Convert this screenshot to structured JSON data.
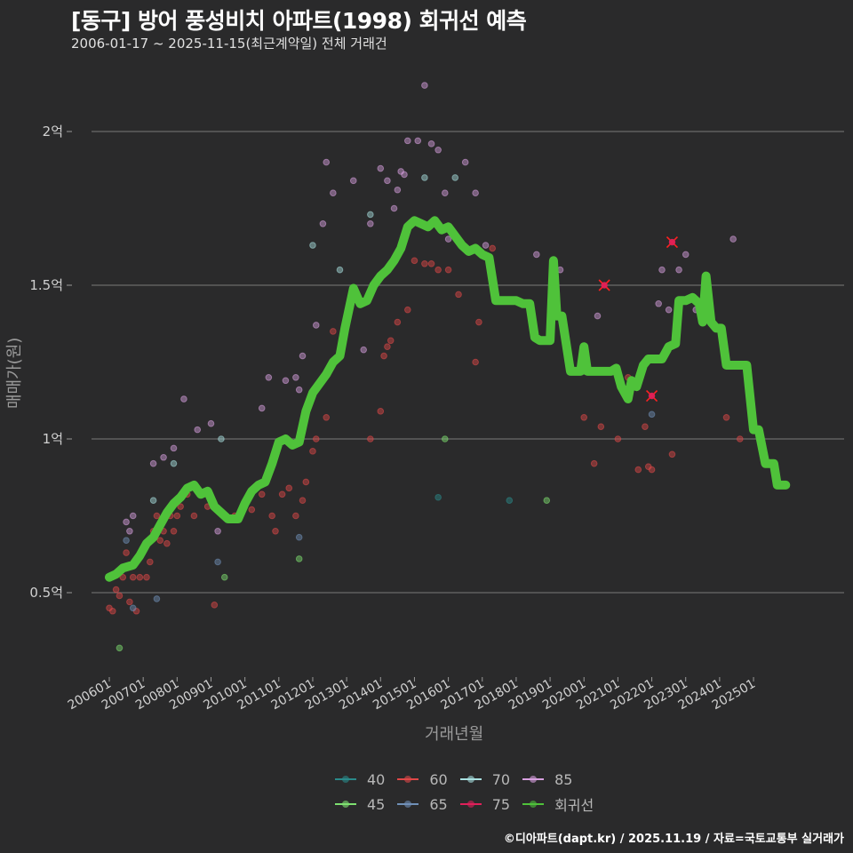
{
  "header": {
    "title": "[동구] 방어 풍성비치 아파트(1998) 회귀선 예측",
    "subtitle": "2006-01-17 ~ 2025-11-15(최근계약일) 전체 거래건"
  },
  "footer": "©디아파트(dapt.kr) / 2025.11.19 / 자료=국토교통부 실거래가",
  "legend": [
    {
      "label": "40",
      "color": "#2a8a8a"
    },
    {
      "label": "60",
      "color": "#e04848"
    },
    {
      "label": "70",
      "color": "#a8e0e0"
    },
    {
      "label": "85",
      "color": "#d8a0e0"
    },
    {
      "label": "45",
      "color": "#7ee070"
    },
    {
      "label": "65",
      "color": "#7090b8"
    },
    {
      "label": "75",
      "color": "#e0205a"
    },
    {
      "label": "회귀선",
      "color": "#4fc23a"
    }
  ],
  "chart_data": {
    "type": "scatter",
    "title": "[동구] 방어 풍성비치 아파트(1998) 회귀선 예측",
    "subtitle": "2006-01-17 ~ 2025-11-15(최근계약일) 전체 거래건",
    "xlabel": "거래년월",
    "ylabel": "매매가(원)",
    "x_ticks": [
      "200601",
      "200701",
      "200801",
      "200901",
      "201001",
      "201101",
      "201201",
      "201301",
      "201401",
      "201501",
      "201601",
      "201701",
      "201801",
      "201901",
      "202001",
      "202101",
      "202201",
      "202301",
      "202401",
      "202501"
    ],
    "y_ticks": [
      {
        "value": 0.5,
        "label": "0.5억"
      },
      {
        "value": 1.0,
        "label": "1억"
      },
      {
        "value": 1.5,
        "label": "1.5억"
      },
      {
        "value": 2.0,
        "label": "2억"
      }
    ],
    "ylim": [
      0.24,
      2.24
    ],
    "grid": "horizontal",
    "legend_position": "bottom",
    "regression_line": {
      "name": "회귀선",
      "color": "#4fc23a",
      "points": [
        [
          2006.0,
          0.55
        ],
        [
          2006.2,
          0.56
        ],
        [
          2006.4,
          0.58
        ],
        [
          2006.7,
          0.59
        ],
        [
          2006.9,
          0.62
        ],
        [
          2007.1,
          0.66
        ],
        [
          2007.3,
          0.68
        ],
        [
          2007.5,
          0.72
        ],
        [
          2007.7,
          0.76
        ],
        [
          2007.9,
          0.79
        ],
        [
          2008.1,
          0.81
        ],
        [
          2008.3,
          0.84
        ],
        [
          2008.5,
          0.85
        ],
        [
          2008.7,
          0.82
        ],
        [
          2008.9,
          0.83
        ],
        [
          2009.1,
          0.78
        ],
        [
          2009.3,
          0.76
        ],
        [
          2009.5,
          0.74
        ],
        [
          2009.8,
          0.74
        ],
        [
          2010.0,
          0.79
        ],
        [
          2010.2,
          0.83
        ],
        [
          2010.4,
          0.85
        ],
        [
          2010.6,
          0.86
        ],
        [
          2010.8,
          0.92
        ],
        [
          2011.0,
          0.99
        ],
        [
          2011.2,
          1.0
        ],
        [
          2011.4,
          0.98
        ],
        [
          2011.6,
          0.99
        ],
        [
          2011.8,
          1.09
        ],
        [
          2012.0,
          1.15
        ],
        [
          2012.2,
          1.18
        ],
        [
          2012.4,
          1.21
        ],
        [
          2012.6,
          1.25
        ],
        [
          2012.8,
          1.27
        ],
        [
          2012.95,
          1.36
        ],
        [
          2013.2,
          1.49
        ],
        [
          2013.4,
          1.44
        ],
        [
          2013.6,
          1.45
        ],
        [
          2013.8,
          1.5
        ],
        [
          2014.0,
          1.53
        ],
        [
          2014.2,
          1.55
        ],
        [
          2014.4,
          1.58
        ],
        [
          2014.6,
          1.62
        ],
        [
          2014.8,
          1.69
        ],
        [
          2015.0,
          1.71
        ],
        [
          2015.2,
          1.7
        ],
        [
          2015.4,
          1.69
        ],
        [
          2015.6,
          1.71
        ],
        [
          2015.8,
          1.68
        ],
        [
          2016.0,
          1.69
        ],
        [
          2016.2,
          1.66
        ],
        [
          2016.4,
          1.63
        ],
        [
          2016.6,
          1.61
        ],
        [
          2016.8,
          1.62
        ],
        [
          2017.0,
          1.6
        ],
        [
          2017.2,
          1.59
        ],
        [
          2017.4,
          1.45
        ],
        [
          2017.7,
          1.45
        ],
        [
          2018.0,
          1.45
        ],
        [
          2018.2,
          1.44
        ],
        [
          2018.4,
          1.44
        ],
        [
          2018.55,
          1.33
        ],
        [
          2018.7,
          1.32
        ],
        [
          2019.0,
          1.32
        ],
        [
          2019.1,
          1.58
        ],
        [
          2019.2,
          1.4
        ],
        [
          2019.35,
          1.4
        ],
        [
          2019.6,
          1.22
        ],
        [
          2019.9,
          1.22
        ],
        [
          2020.0,
          1.3
        ],
        [
          2020.1,
          1.22
        ],
        [
          2020.4,
          1.22
        ],
        [
          2020.8,
          1.22
        ],
        [
          2020.95,
          1.23
        ],
        [
          2021.1,
          1.17
        ],
        [
          2021.3,
          1.13
        ],
        [
          2021.4,
          1.19
        ],
        [
          2021.55,
          1.17
        ],
        [
          2021.75,
          1.24
        ],
        [
          2021.9,
          1.26
        ],
        [
          2022.1,
          1.26
        ],
        [
          2022.3,
          1.26
        ],
        [
          2022.5,
          1.3
        ],
        [
          2022.7,
          1.31
        ],
        [
          2022.8,
          1.45
        ],
        [
          2023.0,
          1.45
        ],
        [
          2023.2,
          1.46
        ],
        [
          2023.4,
          1.44
        ],
        [
          2023.5,
          1.38
        ],
        [
          2023.6,
          1.53
        ],
        [
          2023.75,
          1.38
        ],
        [
          2023.9,
          1.36
        ],
        [
          2024.05,
          1.36
        ],
        [
          2024.2,
          1.24
        ],
        [
          2024.5,
          1.24
        ],
        [
          2024.8,
          1.24
        ],
        [
          2025.0,
          1.03
        ],
        [
          2025.15,
          1.03
        ],
        [
          2025.35,
          0.92
        ],
        [
          2025.6,
          0.92
        ],
        [
          2025.7,
          0.85
        ],
        [
          2025.95,
          0.85
        ]
      ]
    },
    "series": [
      {
        "name": "40",
        "color": "#2a8a8a",
        "points": [
          [
            2015.7,
            0.81
          ],
          [
            2017.8,
            0.8
          ]
        ]
      },
      {
        "name": "45",
        "color": "#7ee070",
        "points": [
          [
            2006.3,
            0.32
          ],
          [
            2009.4,
            0.55
          ],
          [
            2011.6,
            0.61
          ],
          [
            2015.9,
            1.0
          ],
          [
            2018.9,
            0.8
          ]
        ]
      },
      {
        "name": "60",
        "color": "#e04848",
        "points": [
          [
            2006.0,
            0.45
          ],
          [
            2006.1,
            0.44
          ],
          [
            2006.2,
            0.51
          ],
          [
            2006.3,
            0.49
          ],
          [
            2006.4,
            0.55
          ],
          [
            2006.5,
            0.63
          ],
          [
            2006.6,
            0.47
          ],
          [
            2006.7,
            0.55
          ],
          [
            2006.8,
            0.44
          ],
          [
            2006.9,
            0.55
          ],
          [
            2007.1,
            0.55
          ],
          [
            2007.2,
            0.6
          ],
          [
            2007.3,
            0.7
          ],
          [
            2007.4,
            0.75
          ],
          [
            2007.5,
            0.67
          ],
          [
            2007.6,
            0.7
          ],
          [
            2007.7,
            0.66
          ],
          [
            2007.8,
            0.75
          ],
          [
            2007.9,
            0.7
          ],
          [
            2008.0,
            0.75
          ],
          [
            2008.1,
            0.78
          ],
          [
            2008.3,
            0.82
          ],
          [
            2008.5,
            0.75
          ],
          [
            2008.9,
            0.78
          ],
          [
            2009.1,
            0.46
          ],
          [
            2009.7,
            0.75
          ],
          [
            2010.2,
            0.77
          ],
          [
            2010.5,
            0.82
          ],
          [
            2010.8,
            0.75
          ],
          [
            2010.9,
            0.7
          ],
          [
            2011.1,
            0.82
          ],
          [
            2011.3,
            0.84
          ],
          [
            2011.5,
            0.75
          ],
          [
            2011.7,
            0.8
          ],
          [
            2011.8,
            0.86
          ],
          [
            2012.0,
            0.96
          ],
          [
            2012.1,
            1.0
          ],
          [
            2012.4,
            1.07
          ],
          [
            2012.6,
            1.35
          ],
          [
            2013.7,
            1.0
          ],
          [
            2014.0,
            1.09
          ],
          [
            2014.1,
            1.27
          ],
          [
            2014.2,
            1.3
          ],
          [
            2014.3,
            1.32
          ],
          [
            2014.5,
            1.38
          ],
          [
            2014.8,
            1.42
          ],
          [
            2015.0,
            1.58
          ],
          [
            2015.3,
            1.57
          ],
          [
            2015.5,
            1.57
          ],
          [
            2015.7,
            1.55
          ],
          [
            2016.0,
            1.55
          ],
          [
            2016.3,
            1.47
          ],
          [
            2016.8,
            1.25
          ],
          [
            2016.9,
            1.38
          ],
          [
            2017.3,
            1.62
          ],
          [
            2020.0,
            1.07
          ],
          [
            2020.3,
            0.92
          ],
          [
            2020.5,
            1.04
          ],
          [
            2021.0,
            1.0
          ],
          [
            2021.3,
            1.2
          ],
          [
            2021.6,
            0.9
          ],
          [
            2021.8,
            1.04
          ],
          [
            2021.9,
            0.91
          ],
          [
            2022.0,
            0.9
          ],
          [
            2022.6,
            0.95
          ],
          [
            2024.2,
            1.07
          ],
          [
            2024.6,
            1.0
          ]
        ]
      },
      {
        "name": "65",
        "color": "#7090b8",
        "points": [
          [
            2006.5,
            0.67
          ],
          [
            2006.7,
            0.45
          ],
          [
            2007.4,
            0.48
          ],
          [
            2009.2,
            0.6
          ],
          [
            2011.6,
            0.68
          ],
          [
            2022.0,
            1.08
          ]
        ]
      },
      {
        "name": "70",
        "color": "#a8e0e0",
        "points": [
          [
            2007.3,
            0.8
          ],
          [
            2007.9,
            0.92
          ],
          [
            2009.3,
            1.0
          ],
          [
            2012.0,
            1.63
          ],
          [
            2012.8,
            1.55
          ],
          [
            2013.7,
            1.73
          ],
          [
            2015.3,
            1.85
          ],
          [
            2016.2,
            1.85
          ]
        ]
      },
      {
        "name": "75",
        "color": "#e0205a",
        "points": [
          [
            2020.6,
            1.5
          ],
          [
            2022.0,
            1.14
          ],
          [
            2022.6,
            1.64
          ]
        ]
      },
      {
        "name": "85",
        "color": "#d8a0e0",
        "points": [
          [
            2006.5,
            0.73
          ],
          [
            2006.6,
            0.7
          ],
          [
            2006.7,
            0.75
          ],
          [
            2007.3,
            0.92
          ],
          [
            2007.6,
            0.94
          ],
          [
            2007.9,
            0.97
          ],
          [
            2008.2,
            1.13
          ],
          [
            2008.6,
            1.03
          ],
          [
            2009.0,
            1.05
          ],
          [
            2009.2,
            0.7
          ],
          [
            2010.5,
            1.1
          ],
          [
            2010.7,
            1.2
          ],
          [
            2011.2,
            1.19
          ],
          [
            2011.5,
            1.2
          ],
          [
            2011.6,
            1.16
          ],
          [
            2011.7,
            1.27
          ],
          [
            2012.1,
            1.37
          ],
          [
            2012.3,
            1.7
          ],
          [
            2012.4,
            1.9
          ],
          [
            2012.6,
            1.8
          ],
          [
            2013.2,
            1.84
          ],
          [
            2013.5,
            1.29
          ],
          [
            2013.7,
            1.7
          ],
          [
            2014.0,
            1.88
          ],
          [
            2014.2,
            1.84
          ],
          [
            2014.4,
            1.75
          ],
          [
            2014.5,
            1.81
          ],
          [
            2014.6,
            1.87
          ],
          [
            2014.7,
            1.86
          ],
          [
            2014.8,
            1.97
          ],
          [
            2015.1,
            1.97
          ],
          [
            2015.3,
            2.15
          ],
          [
            2015.5,
            1.96
          ],
          [
            2015.7,
            1.94
          ],
          [
            2015.9,
            1.8
          ],
          [
            2016.0,
            1.65
          ],
          [
            2016.5,
            1.9
          ],
          [
            2016.8,
            1.8
          ],
          [
            2017.1,
            1.63
          ],
          [
            2018.6,
            1.6
          ],
          [
            2019.3,
            1.55
          ],
          [
            2020.4,
            1.4
          ],
          [
            2022.2,
            1.44
          ],
          [
            2022.3,
            1.55
          ],
          [
            2022.5,
            1.42
          ],
          [
            2022.8,
            1.55
          ],
          [
            2023.0,
            1.6
          ],
          [
            2023.3,
            1.42
          ],
          [
            2024.4,
            1.65
          ]
        ]
      }
    ]
  }
}
